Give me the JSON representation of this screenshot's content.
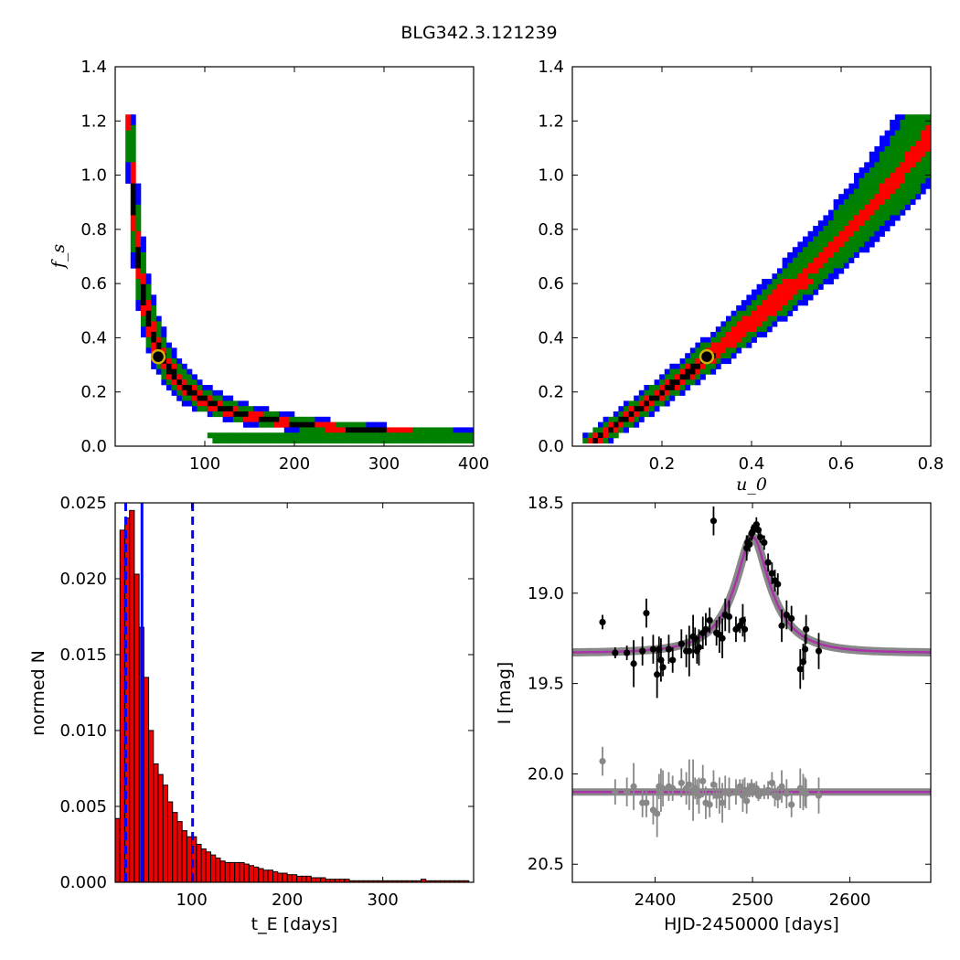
{
  "figure": {
    "title": "BLG342.3.121239"
  },
  "colors": {
    "blue": "#0000ff",
    "green": "#008000",
    "red": "#ff0000",
    "black": "#000000",
    "marker_ring": "#d4b000",
    "model": "#aa33aa",
    "band": "#888888",
    "bar": "#ee0000"
  },
  "chart_data": [
    {
      "id": "tE-fs",
      "type": "heatmap",
      "title": "",
      "xlabel": "",
      "ylabel": "f_s",
      "xlim": [
        0,
        400
      ],
      "ylim": [
        0,
        1.4
      ],
      "xticks": [
        "100",
        "200",
        "300",
        "400"
      ],
      "yticks": [
        "0.0",
        "0.2",
        "0.4",
        "0.6",
        "0.8",
        "1.0",
        "1.2",
        "1.4"
      ],
      "levels": [
        "blue",
        "green",
        "red",
        "black"
      ],
      "marker": {
        "x": 48,
        "y": 0.33
      }
    },
    {
      "id": "u0-fs",
      "type": "heatmap",
      "title": "",
      "xlabel": "u_0",
      "ylabel": "",
      "xlim": [
        0,
        0.8
      ],
      "ylim": [
        0,
        1.4
      ],
      "xticks": [
        "0.2",
        "0.4",
        "0.6",
        "0.8"
      ],
      "yticks": [
        "0.0",
        "0.2",
        "0.4",
        "0.6",
        "0.8",
        "1.0",
        "1.2",
        "1.4"
      ],
      "levels": [
        "blue",
        "green",
        "red",
        "black"
      ],
      "marker": {
        "x": 0.3,
        "y": 0.33
      }
    },
    {
      "id": "tE-hist",
      "type": "bar",
      "title": "",
      "xlabel": "t_E [days]",
      "ylabel": "normed N",
      "xlim": [
        20,
        395
      ],
      "ylim": [
        0,
        0.025
      ],
      "xticks": [
        "100",
        "200",
        "300"
      ],
      "yticks": [
        "0.000",
        "0.005",
        "0.010",
        "0.015",
        "0.020",
        "0.025"
      ],
      "bin_width": 5,
      "x": [
        22.5,
        27.5,
        32.5,
        37.5,
        42.5,
        47.5,
        52.5,
        57.5,
        62.5,
        67.5,
        72.5,
        77.5,
        82.5,
        87.5,
        92.5,
        97.5,
        102.5,
        107.5,
        112.5,
        117.5,
        122.5,
        127.5,
        132.5,
        137.5,
        142.5,
        147.5,
        152.5,
        157.5,
        162.5,
        167.5,
        172.5,
        177.5,
        182.5,
        187.5,
        192.5,
        197.5,
        202.5,
        207.5,
        212.5,
        217.5,
        222.5,
        227.5,
        232.5,
        237.5,
        242.5,
        247.5,
        252.5,
        257.5,
        262.5,
        267.5,
        272.5,
        277.5,
        282.5,
        287.5,
        292.5,
        297.5,
        302.5,
        307.5,
        312.5,
        317.5,
        322.5,
        327.5,
        332.5,
        337.5,
        342.5,
        347.5,
        352.5,
        357.5,
        362.5,
        367.5,
        372.5,
        377.5,
        382.5,
        387.5
      ],
      "values": [
        0.0042,
        0.0232,
        0.024,
        0.0245,
        0.0203,
        0.0168,
        0.0135,
        0.01,
        0.0078,
        0.0071,
        0.0064,
        0.0053,
        0.0046,
        0.004,
        0.0034,
        0.003,
        0.003,
        0.0025,
        0.0022,
        0.002,
        0.0018,
        0.0016,
        0.0014,
        0.0013,
        0.0013,
        0.0013,
        0.0013,
        0.0012,
        0.0011,
        0.001,
        0.0009,
        0.0008,
        0.0008,
        0.0007,
        0.0006,
        0.0006,
        0.0005,
        0.0005,
        0.0004,
        0.0004,
        0.0004,
        0.0003,
        0.0003,
        0.0003,
        0.0002,
        0.0002,
        0.0002,
        0.0002,
        0.0002,
        0.0001,
        0.0001,
        0.0001,
        0.0001,
        0.0001,
        0.0001,
        0.0001,
        0.0001,
        0.0001,
        0.0001,
        0.0001,
        0.0001,
        0.0001,
        0.0001,
        0.0001,
        0.0002,
        0.0001,
        0.0001,
        0.0001,
        0.0001,
        0.0001,
        0.0001,
        0.0001,
        0.0001,
        0.0001
      ],
      "vlines": [
        {
          "x": 48,
          "style": "solid"
        },
        {
          "x": 31,
          "style": "dashed"
        },
        {
          "x": 101,
          "style": "dashed"
        }
      ]
    },
    {
      "id": "lightcurve",
      "type": "scatter",
      "title": "",
      "xlabel": "HJD-2450000 [days]",
      "ylabel": "I [mag]",
      "xlim": [
        2315,
        2683
      ],
      "ylim": [
        20.6,
        18.5
      ],
      "xticks": [
        "2400",
        "2500",
        "2600"
      ],
      "yticks": [
        "18.5",
        "19.0",
        "19.5",
        "20.0",
        "20.5"
      ],
      "model": {
        "t0": 2500,
        "tE": 48,
        "u0": 0.3,
        "fs": 0.33,
        "baseline": 19.33,
        "residual_level": 20.1
      },
      "series": [
        {
          "name": "",
          "color": "black",
          "x": [
            2346,
            2359,
            2371,
            2378,
            2387,
            2391,
            2398,
            2402,
            2404,
            2406,
            2408,
            2414,
            2418,
            2427,
            2432,
            2435,
            2439,
            2441,
            2443,
            2445,
            2449,
            2452,
            2456,
            2460,
            2463,
            2466,
            2469,
            2472,
            2476,
            2483,
            2487,
            2490,
            2492,
            2494,
            2495,
            2497,
            2499,
            2500,
            2502,
            2504,
            2506,
            2508,
            2512,
            2516,
            2520,
            2523,
            2526,
            2530,
            2535,
            2540,
            2549,
            2552,
            2554,
            2555,
            2568
          ],
          "y": [
            19.16,
            19.33,
            19.33,
            19.39,
            19.32,
            19.11,
            19.31,
            19.45,
            19.31,
            19.37,
            19.41,
            19.31,
            19.37,
            19.28,
            19.32,
            19.32,
            19.24,
            19.25,
            19.32,
            19.3,
            19.22,
            19.2,
            19.15,
            18.6,
            19.22,
            19.23,
            19.25,
            19.12,
            19.13,
            19.2,
            19.18,
            19.15,
            19.2,
            18.75,
            18.72,
            18.73,
            18.67,
            18.66,
            18.64,
            18.62,
            18.65,
            18.69,
            18.72,
            18.83,
            18.89,
            18.93,
            18.95,
            19.18,
            19.12,
            19.14,
            19.42,
            19.38,
            19.31,
            19.2,
            19.32
          ],
          "yerr": [
            0.04,
            0.03,
            0.04,
            0.13,
            0.08,
            0.08,
            0.08,
            0.13,
            0.07,
            0.12,
            0.05,
            0.08,
            0.07,
            0.08,
            0.09,
            0.14,
            0.12,
            0.06,
            0.07,
            0.1,
            0.09,
            0.09,
            0.07,
            0.08,
            0.07,
            0.1,
            0.11,
            0.09,
            0.09,
            0.07,
            0.04,
            0.09,
            0.07,
            0.07,
            0.04,
            0.04,
            0.04,
            0.04,
            0.03,
            0.04,
            0.03,
            0.03,
            0.04,
            0.05,
            0.06,
            0.06,
            0.06,
            0.09,
            0.08,
            0.07,
            0.11,
            0.1,
            0.08,
            0.08,
            0.1
          ]
        },
        {
          "name": "",
          "color": "gray",
          "x": [
            2346,
            2359,
            2371,
            2378,
            2387,
            2391,
            2398,
            2402,
            2404,
            2406,
            2408,
            2414,
            2418,
            2427,
            2432,
            2435,
            2439,
            2441,
            2443,
            2445,
            2449,
            2452,
            2456,
            2460,
            2463,
            2466,
            2469,
            2472,
            2476,
            2483,
            2487,
            2490,
            2492,
            2494,
            2495,
            2497,
            2499,
            2500,
            2502,
            2504,
            2506,
            2508,
            2512,
            2516,
            2520,
            2523,
            2526,
            2530,
            2535,
            2540,
            2549,
            2552,
            2554,
            2555,
            2568
          ],
          "y": [
            19.93,
            20.1,
            20.1,
            20.07,
            20.16,
            20.16,
            20.2,
            20.22,
            20.07,
            20.09,
            20.08,
            20.07,
            20.08,
            20.05,
            20.08,
            20.06,
            20.09,
            20.08,
            20.1,
            20.12,
            20.04,
            20.16,
            20.17,
            20.06,
            20.12,
            20.12,
            20.16,
            20.1,
            20.11,
            20.1,
            20.07,
            20.12,
            20.09,
            20.15,
            20.09,
            20.09,
            20.07,
            20.09,
            20.08,
            20.08,
            20.12,
            20.11,
            20.1,
            20.09,
            20.05,
            20.12,
            20.13,
            20.07,
            20.11,
            20.17,
            20.08,
            20.1,
            20.1,
            20.11,
            20.12
          ],
          "yerr": [
            0.08,
            0.07,
            0.08,
            0.13,
            0.08,
            0.08,
            0.08,
            0.13,
            0.07,
            0.12,
            0.1,
            0.08,
            0.07,
            0.08,
            0.09,
            0.14,
            0.17,
            0.06,
            0.07,
            0.1,
            0.09,
            0.09,
            0.07,
            0.08,
            0.07,
            0.1,
            0.11,
            0.09,
            0.09,
            0.07,
            0.04,
            0.09,
            0.07,
            0.07,
            0.04,
            0.04,
            0.04,
            0.04,
            0.03,
            0.04,
            0.03,
            0.03,
            0.04,
            0.05,
            0.06,
            0.06,
            0.06,
            0.09,
            0.08,
            0.07,
            0.11,
            0.1,
            0.08,
            0.08,
            0.1
          ]
        }
      ]
    }
  ]
}
